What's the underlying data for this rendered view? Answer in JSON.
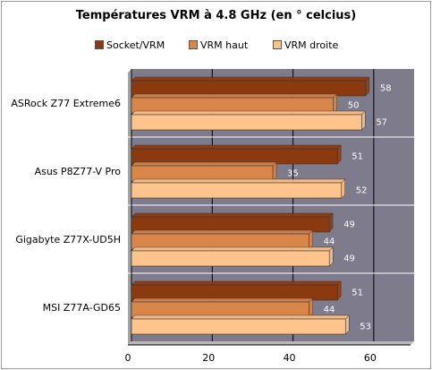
{
  "chart_data": {
    "type": "bar",
    "orientation": "horizontal",
    "title": "Températures VRM à 4.8 GHz (en ° celcius)",
    "categories": [
      "ASRock Z77 Extreme6",
      "Asus P8Z77-V Pro",
      "Gigabyte Z77X-UD5H",
      "MSI Z77A-GD65"
    ],
    "series": [
      {
        "name": "Socket/VRM",
        "values": [
          58,
          51,
          49,
          51
        ],
        "color": "#8B3A0F"
      },
      {
        "name": "VRM haut",
        "values": [
          50,
          35,
          44,
          44
        ],
        "color": "#D9864A"
      },
      {
        "name": "VRM droite",
        "values": [
          57,
          52,
          49,
          53
        ],
        "color": "#FFC48C"
      }
    ],
    "xlim": [
      0,
      70
    ],
    "xticks": [
      0,
      20,
      40,
      60
    ],
    "xlabel": "",
    "ylabel": "",
    "grid": true,
    "legend_position": "top",
    "plot_background": "#7D7B8C",
    "label_color": "#ffffff"
  }
}
